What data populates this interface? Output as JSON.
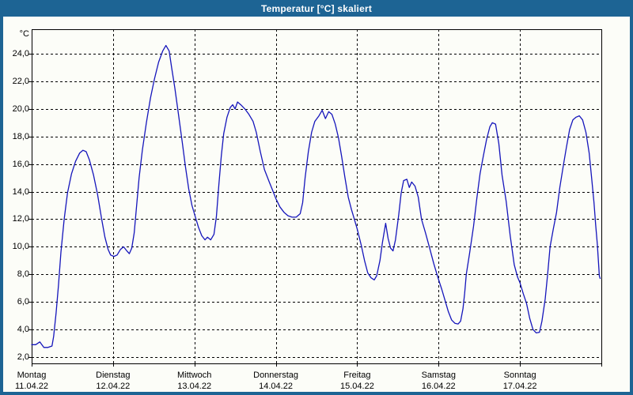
{
  "window": {
    "title": "Temperatur [°C] skaliert"
  },
  "colors": {
    "frame": "#1d6494",
    "titlebar_bg": "#1d6494",
    "title_text": "#ffffff",
    "canvas_bg": "#fcfdf8",
    "grid": "#000000",
    "axis": "#000000",
    "label_text": "#000000",
    "line": "#1515bb"
  },
  "chart_data": {
    "type": "line",
    "title": "Temperatur [°C] skaliert",
    "xlabel": "",
    "ylabel": "°C",
    "grid": true,
    "legend": "none",
    "ylim": [
      1.54,
      25.78
    ],
    "xlim": [
      0,
      7
    ],
    "y_ticks": {
      "values": [
        24,
        22,
        20,
        18,
        16,
        14,
        12,
        10,
        8,
        6,
        4,
        2
      ],
      "labels": [
        "24,0",
        "22,0",
        "20,0",
        "18,0",
        "16,0",
        "14,0",
        "12,0",
        "10,0",
        "8,0",
        "6,0",
        "4,0",
        "2,0"
      ]
    },
    "x_ticks": {
      "day_boundaries": [
        0,
        1,
        2,
        3,
        4,
        5,
        6,
        7
      ],
      "categories": [
        {
          "label": "Montag",
          "date": "11.04.22",
          "position": 0
        },
        {
          "label": "Dienstag",
          "date": "12.04.22",
          "position": 1
        },
        {
          "label": "Mittwoch",
          "date": "13.04.22",
          "position": 2
        },
        {
          "label": "Donnerstag",
          "date": "14.04.22",
          "position": 3
        },
        {
          "label": "Freitag",
          "date": "15.04.22",
          "position": 4
        },
        {
          "label": "Samstag",
          "date": "16.04.22",
          "position": 5
        },
        {
          "label": "Sonntag",
          "date": "17.04.22",
          "position": 6
        }
      ]
    },
    "series": [
      {
        "name": "Temperatur",
        "color": "#1515bb",
        "points": [
          [
            0.0,
            2.9
          ],
          [
            0.05,
            2.9
          ],
          [
            0.1,
            3.1
          ],
          [
            0.15,
            2.7
          ],
          [
            0.2,
            2.7
          ],
          [
            0.25,
            2.8
          ],
          [
            0.27,
            3.5
          ],
          [
            0.3,
            5.2
          ],
          [
            0.33,
            7.2
          ],
          [
            0.36,
            9.6
          ],
          [
            0.4,
            12.0
          ],
          [
            0.44,
            13.9
          ],
          [
            0.49,
            15.3
          ],
          [
            0.54,
            16.2
          ],
          [
            0.59,
            16.8
          ],
          [
            0.63,
            17.0
          ],
          [
            0.67,
            16.9
          ],
          [
            0.71,
            16.3
          ],
          [
            0.76,
            15.2
          ],
          [
            0.81,
            13.8
          ],
          [
            0.86,
            12.0
          ],
          [
            0.9,
            10.7
          ],
          [
            0.94,
            9.8
          ],
          [
            0.97,
            9.4
          ],
          [
            1.01,
            9.3
          ],
          [
            1.05,
            9.4
          ],
          [
            1.09,
            9.8
          ],
          [
            1.13,
            10.0
          ],
          [
            1.17,
            9.7
          ],
          [
            1.2,
            9.5
          ],
          [
            1.23,
            9.9
          ],
          [
            1.26,
            11.0
          ],
          [
            1.29,
            13.0
          ],
          [
            1.32,
            15.0
          ],
          [
            1.36,
            17.0
          ],
          [
            1.41,
            19.0
          ],
          [
            1.46,
            20.8
          ],
          [
            1.51,
            22.2
          ],
          [
            1.56,
            23.4
          ],
          [
            1.61,
            24.2
          ],
          [
            1.65,
            24.6
          ],
          [
            1.69,
            24.2
          ],
          [
            1.72,
            23.0
          ],
          [
            1.76,
            21.5
          ],
          [
            1.8,
            19.8
          ],
          [
            1.85,
            17.6
          ],
          [
            1.89,
            15.8
          ],
          [
            1.93,
            14.2
          ],
          [
            1.97,
            13.0
          ],
          [
            2.01,
            12.2
          ],
          [
            2.05,
            11.4
          ],
          [
            2.09,
            10.8
          ],
          [
            2.13,
            10.5
          ],
          [
            2.16,
            10.7
          ],
          [
            2.2,
            10.5
          ],
          [
            2.24,
            10.9
          ],
          [
            2.27,
            12.2
          ],
          [
            2.3,
            14.5
          ],
          [
            2.33,
            16.6
          ],
          [
            2.36,
            18.2
          ],
          [
            2.4,
            19.4
          ],
          [
            2.44,
            20.1
          ],
          [
            2.47,
            20.3
          ],
          [
            2.5,
            20.0
          ],
          [
            2.53,
            20.5
          ],
          [
            2.57,
            20.3
          ],
          [
            2.62,
            20.0
          ],
          [
            2.67,
            19.6
          ],
          [
            2.72,
            19.1
          ],
          [
            2.76,
            18.3
          ],
          [
            2.81,
            16.9
          ],
          [
            2.86,
            15.6
          ],
          [
            2.92,
            14.7
          ],
          [
            2.96,
            14.1
          ],
          [
            3.0,
            13.5
          ],
          [
            3.05,
            12.9
          ],
          [
            3.1,
            12.5
          ],
          [
            3.15,
            12.25
          ],
          [
            3.2,
            12.15
          ],
          [
            3.25,
            12.15
          ],
          [
            3.3,
            12.4
          ],
          [
            3.33,
            13.2
          ],
          [
            3.36,
            15.0
          ],
          [
            3.4,
            16.9
          ],
          [
            3.44,
            18.3
          ],
          [
            3.48,
            19.1
          ],
          [
            3.53,
            19.5
          ],
          [
            3.57,
            19.9
          ],
          [
            3.61,
            19.3
          ],
          [
            3.65,
            19.8
          ],
          [
            3.69,
            19.6
          ],
          [
            3.73,
            18.9
          ],
          [
            3.77,
            17.9
          ],
          [
            3.81,
            16.5
          ],
          [
            3.85,
            15.0
          ],
          [
            3.89,
            13.6
          ],
          [
            3.93,
            12.7
          ],
          [
            3.96,
            12.1
          ],
          [
            4.0,
            11.3
          ],
          [
            4.05,
            10.1
          ],
          [
            4.09,
            9.0
          ],
          [
            4.13,
            8.1
          ],
          [
            4.17,
            7.75
          ],
          [
            4.21,
            7.6
          ],
          [
            4.24,
            7.9
          ],
          [
            4.28,
            9.0
          ],
          [
            4.31,
            10.3
          ],
          [
            4.35,
            11.7
          ],
          [
            4.38,
            10.6
          ],
          [
            4.41,
            9.9
          ],
          [
            4.44,
            9.7
          ],
          [
            4.47,
            10.5
          ],
          [
            4.51,
            12.3
          ],
          [
            4.54,
            13.9
          ],
          [
            4.57,
            14.8
          ],
          [
            4.61,
            14.9
          ],
          [
            4.64,
            14.3
          ],
          [
            4.67,
            14.7
          ],
          [
            4.71,
            14.4
          ],
          [
            4.75,
            13.6
          ],
          [
            4.79,
            12.0
          ],
          [
            4.84,
            11.0
          ],
          [
            4.89,
            9.9
          ],
          [
            4.94,
            8.8
          ],
          [
            4.99,
            7.8
          ],
          [
            5.04,
            6.9
          ],
          [
            5.08,
            6.1
          ],
          [
            5.12,
            5.3
          ],
          [
            5.16,
            4.7
          ],
          [
            5.2,
            4.45
          ],
          [
            5.24,
            4.4
          ],
          [
            5.27,
            4.6
          ],
          [
            5.3,
            5.5
          ],
          [
            5.32,
            6.6
          ],
          [
            5.34,
            8.0
          ],
          [
            5.38,
            9.5
          ],
          [
            5.43,
            11.5
          ],
          [
            5.47,
            13.5
          ],
          [
            5.51,
            15.3
          ],
          [
            5.55,
            16.6
          ],
          [
            5.59,
            17.8
          ],
          [
            5.63,
            18.7
          ],
          [
            5.66,
            19.0
          ],
          [
            5.7,
            18.9
          ],
          [
            5.74,
            17.5
          ],
          [
            5.78,
            15.2
          ],
          [
            5.83,
            13.3
          ],
          [
            5.88,
            10.8
          ],
          [
            5.93,
            8.7
          ],
          [
            5.97,
            7.8
          ],
          [
            6.0,
            7.4
          ],
          [
            6.04,
            6.6
          ],
          [
            6.08,
            5.9
          ],
          [
            6.12,
            4.8
          ],
          [
            6.16,
            4.0
          ],
          [
            6.2,
            3.75
          ],
          [
            6.24,
            3.8
          ],
          [
            6.27,
            4.6
          ],
          [
            6.31,
            6.2
          ],
          [
            6.34,
            8.0
          ],
          [
            6.37,
            10.0
          ],
          [
            6.41,
            11.3
          ],
          [
            6.45,
            12.5
          ],
          [
            6.49,
            14.3
          ],
          [
            6.53,
            15.8
          ],
          [
            6.57,
            17.2
          ],
          [
            6.61,
            18.5
          ],
          [
            6.65,
            19.2
          ],
          [
            6.69,
            19.4
          ],
          [
            6.73,
            19.5
          ],
          [
            6.77,
            19.2
          ],
          [
            6.81,
            18.3
          ],
          [
            6.85,
            16.8
          ],
          [
            6.88,
            15.0
          ],
          [
            6.91,
            13.2
          ],
          [
            6.93,
            11.6
          ],
          [
            6.95,
            10.2
          ],
          [
            6.96,
            9.3
          ],
          [
            6.97,
            8.4
          ],
          [
            6.975,
            7.9
          ],
          [
            6.985,
            7.7
          ]
        ]
      }
    ]
  }
}
